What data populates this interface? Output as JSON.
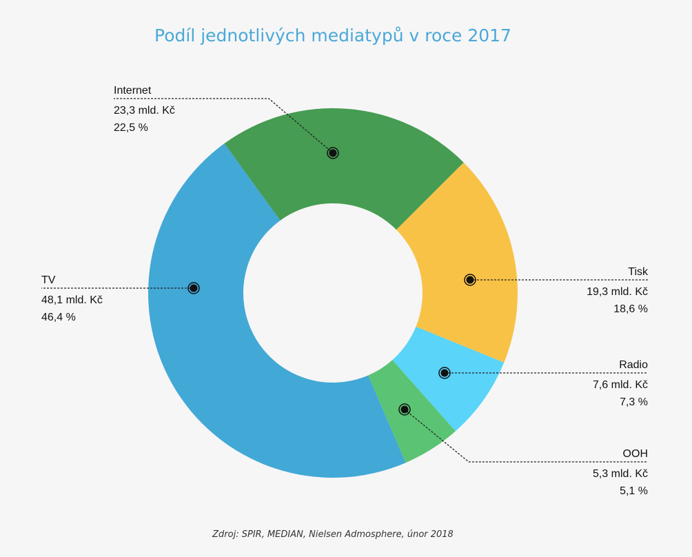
{
  "chart_data": {
    "type": "pie",
    "variant": "donut",
    "title": "Podíl jednotlivých mediatypů v roce 2017",
    "source": "Zdroj: SPIR, MEDIAN, Nielsen Admosphere, únor 2018",
    "slices": [
      {
        "label": "Internet",
        "amount": "23,3 mld. Kč",
        "value": 23.3,
        "percent": 22.5,
        "percent_text": "22,5 %",
        "color": "#469c52"
      },
      {
        "label": "Tisk",
        "amount": "19,3 mld. Kč",
        "value": 19.3,
        "percent": 18.6,
        "percent_text": "18,6 %",
        "color": "#f8c247"
      },
      {
        "label": "Radio",
        "amount": "7,6 mld. Kč",
        "value": 7.6,
        "percent": 7.3,
        "percent_text": "7,3 %",
        "color": "#5ad4f9"
      },
      {
        "label": "OOH",
        "amount": "5,3 mld. Kč",
        "value": 5.3,
        "percent": 5.1,
        "percent_text": "5,1 %",
        "color": "#5bc474"
      },
      {
        "label": "TV",
        "amount": "48,1 mld. Kč",
        "value": 48.1,
        "percent": 46.4,
        "percent_text": "46,4 %",
        "color": "#42a8d6"
      }
    ]
  }
}
